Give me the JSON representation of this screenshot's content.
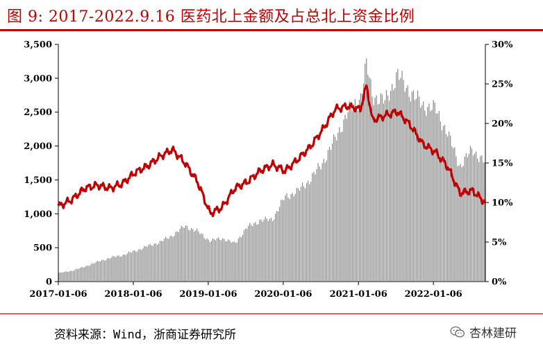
{
  "title": "图 9:    2017-2022.9.16 医药北上金额及占总北上资金比例",
  "source": "资料来源：Wind，浙商证券研究所",
  "watermark": "杏林建研",
  "chart_data": {
    "type": "bar+line",
    "title": "2017-2022.9.16 医药北上金额及占总北上资金比例",
    "x_ticks": [
      "2017-01-06",
      "2018-01-06",
      "2019-01-06",
      "2020-01-06",
      "2021-01-06",
      "2022-01-06"
    ],
    "y_left": {
      "lim": [
        0,
        3500
      ],
      "ticks": [
        "0",
        "500",
        "1,000",
        "1,500",
        "2,000",
        "2,500",
        "3,000",
        "3,500"
      ]
    },
    "y_right": {
      "lim": [
        0,
        0.3
      ],
      "ticks": [
        "0%",
        "5%",
        "10%",
        "15%",
        "20%",
        "25%",
        "30%"
      ]
    },
    "colors": {
      "bars": "#7f7f7f",
      "line": "#c00000",
      "title": "#c00000"
    },
    "series": [
      {
        "kind": "bar",
        "axis": "left",
        "x": [
          "2017-01",
          "2017-03",
          "2017-05",
          "2017-07",
          "2017-09",
          "2017-11",
          "2018-01",
          "2018-03",
          "2018-05",
          "2018-07",
          "2018-09",
          "2018-11",
          "2019-01",
          "2019-03",
          "2019-05",
          "2019-07",
          "2019-09",
          "2019-11",
          "2020-01",
          "2020-03",
          "2020-05",
          "2020-07",
          "2020-09",
          "2020-11",
          "2021-01",
          "2021-02",
          "2021-03",
          "2021-05",
          "2021-07",
          "2021-09",
          "2021-11",
          "2022-01",
          "2022-03",
          "2022-05",
          "2022-07",
          "2022-09"
        ],
        "values": [
          130,
          160,
          220,
          290,
          350,
          390,
          450,
          520,
          580,
          680,
          820,
          740,
          600,
          640,
          560,
          800,
          900,
          920,
          1250,
          1330,
          1500,
          1750,
          2100,
          2500,
          2700,
          3200,
          2750,
          2650,
          3050,
          2800,
          2600,
          2550,
          2200,
          1700,
          1950,
          1750
        ]
      },
      {
        "kind": "line",
        "axis": "right",
        "x": [
          "2017-01",
          "2017-03",
          "2017-05",
          "2017-07",
          "2017-09",
          "2017-11",
          "2018-01",
          "2018-03",
          "2018-05",
          "2018-07",
          "2018-09",
          "2018-11",
          "2019-01",
          "2019-03",
          "2019-05",
          "2019-07",
          "2019-09",
          "2019-11",
          "2020-01",
          "2020-03",
          "2020-05",
          "2020-07",
          "2020-09",
          "2020-11",
          "2021-01",
          "2021-02",
          "2021-03",
          "2021-05",
          "2021-07",
          "2021-09",
          "2021-11",
          "2022-01",
          "2022-03",
          "2022-05",
          "2022-07",
          "2022-09"
        ],
        "values": [
          0.096,
          0.104,
          0.118,
          0.122,
          0.118,
          0.124,
          0.138,
          0.146,
          0.158,
          0.167,
          0.15,
          0.126,
          0.086,
          0.094,
          0.118,
          0.126,
          0.14,
          0.148,
          0.14,
          0.154,
          0.17,
          0.192,
          0.218,
          0.222,
          0.218,
          0.248,
          0.204,
          0.21,
          0.215,
          0.198,
          0.174,
          0.164,
          0.146,
          0.112,
          0.115,
          0.1
        ]
      }
    ]
  }
}
